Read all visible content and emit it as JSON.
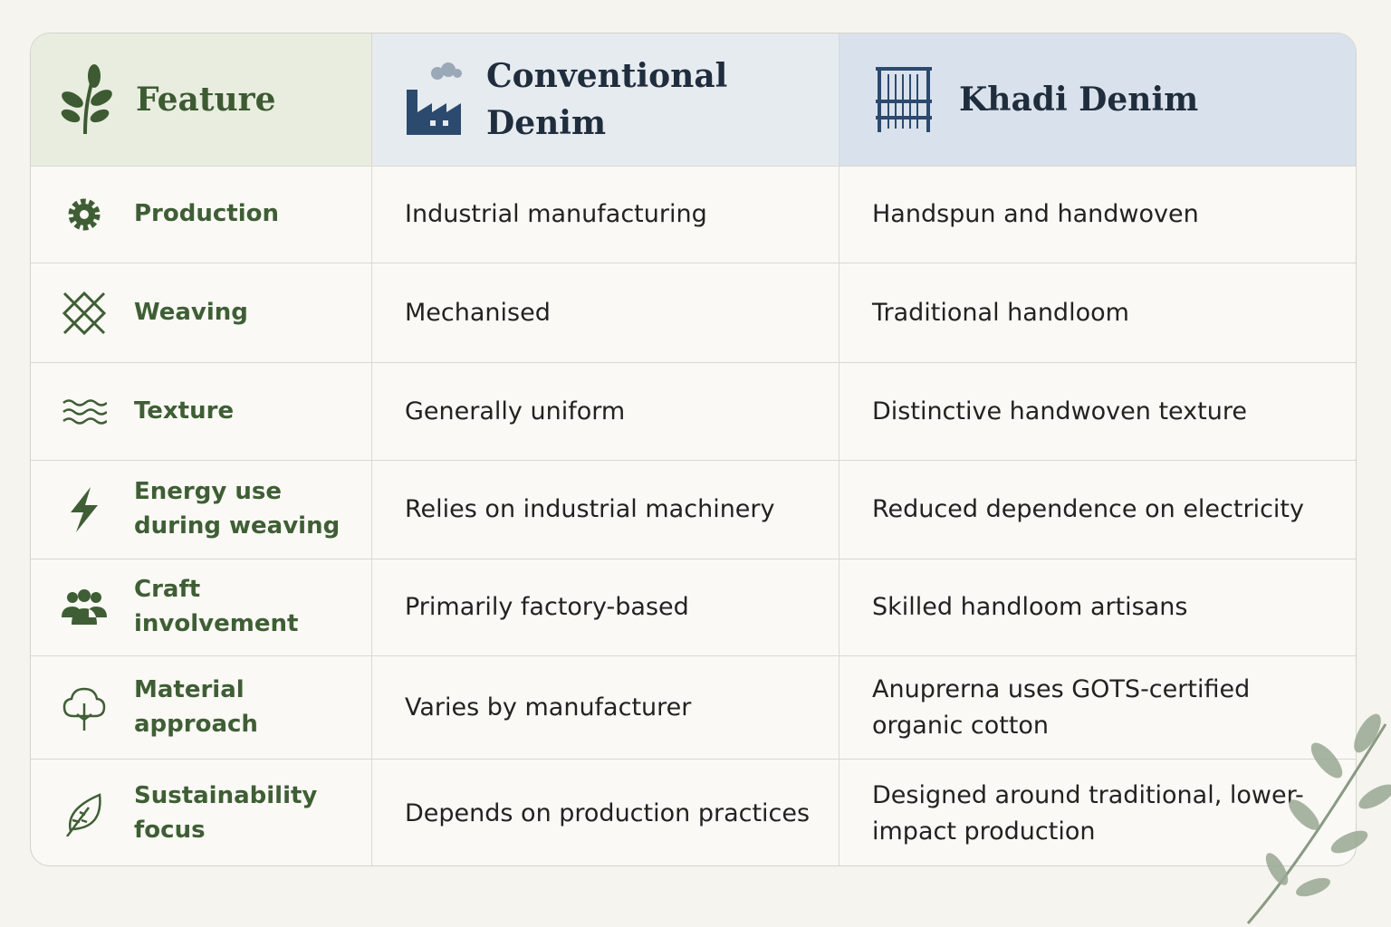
{
  "header": {
    "feature": "Feature",
    "conventional": "Conventional Denim",
    "khadi": "Khadi Denim"
  },
  "rows": [
    [
      "Production",
      "Industrial manufacturing",
      "Handspun and handwoven"
    ],
    [
      "Weaving",
      "Mechanised",
      "Traditional handloom"
    ],
    [
      "Texture",
      "Generally uniform",
      "Distinctive handwoven texture"
    ],
    [
      "Energy use during weaving",
      "Relies on industrial machinery",
      "Reduced dependence on electricity"
    ],
    [
      "Craft involvement",
      "Primarily factory-based",
      "Skilled handloom artisans"
    ],
    [
      "Material approach",
      "Varies by manufacturer",
      "Anuprerna uses GOTS-certified organic cotton"
    ],
    [
      "Sustainability focus",
      "Depends on production practices",
      "Designed around traditional, lower-impact production"
    ]
  ]
}
